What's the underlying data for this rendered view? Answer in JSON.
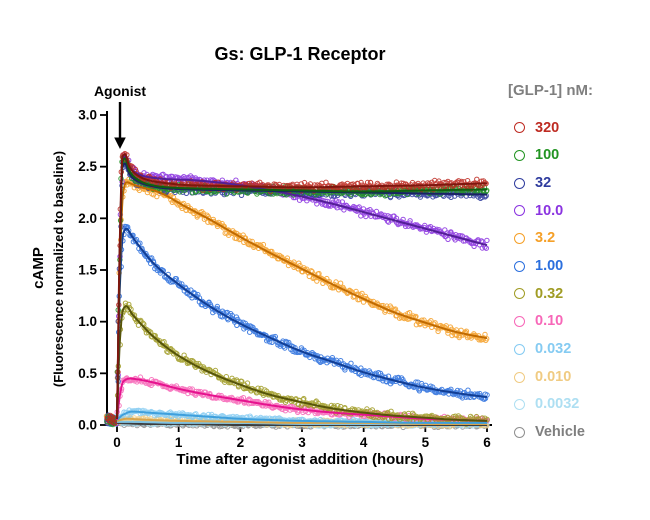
{
  "chart_data": {
    "type": "scatter",
    "title": "Gs: GLP-1 Receptor",
    "xlabel": "Time after agonist addition (hours)",
    "ylabel": "cAMP",
    "ylabel_sub": "(Fluorescence normalized to baseline)",
    "legend_title": "[GLP-1] nM:",
    "annotation": {
      "label": "Agonist",
      "x": 0
    },
    "xlim": [
      -0.25,
      6.1
    ],
    "ylim": [
      0.0,
      3.0
    ],
    "xticks": [
      "0",
      "1",
      "2",
      "3",
      "4",
      "5",
      "6"
    ],
    "yticks": [
      "0.0",
      "0.5",
      "1.0",
      "1.5",
      "2.0",
      "2.5",
      "3.0"
    ],
    "grid": false,
    "legend_position": "right",
    "baseline_y": 0.05,
    "series": [
      {
        "label": "320",
        "color": "#BE2B22",
        "line_color": "#7E160E",
        "noise": 0.05,
        "keypoints": [
          [
            0,
            0.06
          ],
          [
            0.05,
            1.9
          ],
          [
            0.09,
            2.6
          ],
          [
            0.13,
            2.62
          ],
          [
            0.2,
            2.5
          ],
          [
            0.3,
            2.43
          ],
          [
            0.5,
            2.37
          ],
          [
            0.8,
            2.34
          ],
          [
            1.2,
            2.32
          ],
          [
            2,
            2.31
          ],
          [
            3,
            2.3
          ],
          [
            4,
            2.31
          ],
          [
            5,
            2.32
          ],
          [
            6,
            2.34
          ]
        ]
      },
      {
        "label": "100",
        "color": "#229422",
        "line_color": "#115E11",
        "noise": 0.05,
        "keypoints": [
          [
            0,
            0.06
          ],
          [
            0.05,
            1.8
          ],
          [
            0.09,
            2.55
          ],
          [
            0.13,
            2.58
          ],
          [
            0.2,
            2.46
          ],
          [
            0.3,
            2.39
          ],
          [
            0.5,
            2.33
          ],
          [
            0.8,
            2.3
          ],
          [
            1.2,
            2.29
          ],
          [
            2,
            2.28
          ],
          [
            3,
            2.27
          ],
          [
            4,
            2.26
          ],
          [
            5,
            2.27
          ],
          [
            6,
            2.28
          ]
        ]
      },
      {
        "label": "32",
        "color": "#2F3C9E",
        "line_color": "#1A2266",
        "noise": 0.05,
        "keypoints": [
          [
            0,
            0.06
          ],
          [
            0.05,
            1.7
          ],
          [
            0.09,
            2.5
          ],
          [
            0.13,
            2.53
          ],
          [
            0.2,
            2.43
          ],
          [
            0.3,
            2.37
          ],
          [
            0.5,
            2.32
          ],
          [
            0.8,
            2.29
          ],
          [
            1.2,
            2.28
          ],
          [
            2,
            2.27
          ],
          [
            3,
            2.26
          ],
          [
            4,
            2.25
          ],
          [
            5,
            2.24
          ],
          [
            6,
            2.23
          ]
        ]
      },
      {
        "label": "10.0",
        "color": "#8A33E0",
        "line_color": "#531F96",
        "noise": 0.05,
        "keypoints": [
          [
            0,
            0.06
          ],
          [
            0.05,
            1.8
          ],
          [
            0.09,
            2.55
          ],
          [
            0.13,
            2.6
          ],
          [
            0.2,
            2.5
          ],
          [
            0.3,
            2.44
          ],
          [
            0.5,
            2.4
          ],
          [
            0.8,
            2.38
          ],
          [
            1.2,
            2.37
          ],
          [
            1.6,
            2.35
          ],
          [
            2,
            2.32
          ],
          [
            2.5,
            2.27
          ],
          [
            3,
            2.21
          ],
          [
            3.5,
            2.14
          ],
          [
            4,
            2.06
          ],
          [
            4.5,
            1.98
          ],
          [
            5,
            1.9
          ],
          [
            5.5,
            1.82
          ],
          [
            6,
            1.74
          ]
        ]
      },
      {
        "label": "3.2",
        "color": "#F5A028",
        "line_color": "#C06A00",
        "noise": 0.05,
        "keypoints": [
          [
            0,
            0.06
          ],
          [
            0.05,
            1.6
          ],
          [
            0.1,
            2.25
          ],
          [
            0.15,
            2.35
          ],
          [
            0.25,
            2.33
          ],
          [
            0.4,
            2.3
          ],
          [
            0.6,
            2.27
          ],
          [
            0.8,
            2.22
          ],
          [
            1,
            2.15
          ],
          [
            1.5,
            1.99
          ],
          [
            2,
            1.82
          ],
          [
            2.5,
            1.66
          ],
          [
            3,
            1.51
          ],
          [
            3.5,
            1.36
          ],
          [
            4,
            1.22
          ],
          [
            4.5,
            1.09
          ],
          [
            5,
            0.99
          ],
          [
            5.5,
            0.9
          ],
          [
            6,
            0.84
          ]
        ]
      },
      {
        "label": "1.00",
        "color": "#2B6FDE",
        "line_color": "#123E94",
        "noise": 0.05,
        "keypoints": [
          [
            0,
            0.06
          ],
          [
            0.05,
            1.4
          ],
          [
            0.1,
            1.85
          ],
          [
            0.15,
            1.9
          ],
          [
            0.25,
            1.82
          ],
          [
            0.4,
            1.7
          ],
          [
            0.6,
            1.56
          ],
          [
            1,
            1.36
          ],
          [
            1.5,
            1.15
          ],
          [
            2,
            0.98
          ],
          [
            2.5,
            0.84
          ],
          [
            3,
            0.71
          ],
          [
            3.5,
            0.61
          ],
          [
            4,
            0.51
          ],
          [
            4.5,
            0.43
          ],
          [
            5,
            0.36
          ],
          [
            5.5,
            0.31
          ],
          [
            6,
            0.27
          ]
        ]
      },
      {
        "label": "0.32",
        "color": "#A09C24",
        "line_color": "#56540A",
        "noise": 0.045,
        "keypoints": [
          [
            0,
            0.06
          ],
          [
            0.05,
            0.85
          ],
          [
            0.1,
            1.12
          ],
          [
            0.15,
            1.15
          ],
          [
            0.25,
            1.07
          ],
          [
            0.4,
            0.97
          ],
          [
            0.6,
            0.85
          ],
          [
            1,
            0.67
          ],
          [
            1.5,
            0.51
          ],
          [
            2,
            0.39
          ],
          [
            2.5,
            0.29
          ],
          [
            3,
            0.22
          ],
          [
            3.5,
            0.16
          ],
          [
            4,
            0.12
          ],
          [
            4.5,
            0.09
          ],
          [
            5,
            0.07
          ],
          [
            5.5,
            0.05
          ],
          [
            6,
            0.04
          ]
        ]
      },
      {
        "label": "0.10",
        "color": "#F767B8",
        "line_color": "#E5128E",
        "noise": 0.035,
        "keypoints": [
          [
            0,
            0.05
          ],
          [
            0.05,
            0.3
          ],
          [
            0.1,
            0.42
          ],
          [
            0.2,
            0.45
          ],
          [
            0.35,
            0.44
          ],
          [
            0.6,
            0.41
          ],
          [
            1,
            0.35
          ],
          [
            1.5,
            0.29
          ],
          [
            2,
            0.24
          ],
          [
            2.5,
            0.19
          ],
          [
            3,
            0.15
          ],
          [
            3.5,
            0.12
          ],
          [
            4,
            0.1
          ],
          [
            4.5,
            0.08
          ],
          [
            5,
            0.06
          ],
          [
            5.5,
            0.05
          ],
          [
            6,
            0.04
          ]
        ]
      },
      {
        "label": "0.032",
        "color": "#85CBF2",
        "line_color": "#3E9FDC",
        "noise": 0.03,
        "keypoints": [
          [
            0,
            0.05
          ],
          [
            0.1,
            0.1
          ],
          [
            0.25,
            0.13
          ],
          [
            0.5,
            0.12
          ],
          [
            1,
            0.1
          ],
          [
            1.5,
            0.08
          ],
          [
            2,
            0.06
          ],
          [
            3,
            0.04
          ],
          [
            4,
            0.03
          ],
          [
            5,
            0.02
          ],
          [
            6,
            0.02
          ]
        ]
      },
      {
        "label": "0.010",
        "color": "#F0CB82",
        "line_color": "#D8A44C",
        "noise": 0.03,
        "keypoints": [
          [
            0,
            0.04
          ],
          [
            0.15,
            0.06
          ],
          [
            0.5,
            0.05
          ],
          [
            1,
            0.04
          ],
          [
            2,
            0.03
          ],
          [
            3,
            0.02
          ],
          [
            4,
            0.02
          ],
          [
            5,
            0.01
          ],
          [
            6,
            0.01
          ]
        ]
      },
      {
        "label": "0.0032",
        "color": "#AEDFF2",
        "line_color": "#7FC2E2",
        "noise": 0.025,
        "keypoints": [
          [
            0,
            0.03
          ],
          [
            0.25,
            0.03
          ],
          [
            1,
            0.02
          ],
          [
            2,
            0.02
          ],
          [
            3,
            0.01
          ],
          [
            4,
            0.01
          ],
          [
            5,
            0.01
          ],
          [
            6,
            0.01
          ]
        ]
      },
      {
        "label": "Vehicle",
        "color": "#8F8F8F",
        "line_color": "#3C3C3C",
        "noise": 0.025,
        "keypoints": [
          [
            0,
            0.02
          ],
          [
            0.5,
            0.01
          ],
          [
            1,
            0.01
          ],
          [
            2,
            0.0
          ],
          [
            3,
            0.0
          ],
          [
            4,
            0.0
          ],
          [
            5,
            0.0
          ],
          [
            6,
            0.0
          ]
        ]
      }
    ]
  }
}
